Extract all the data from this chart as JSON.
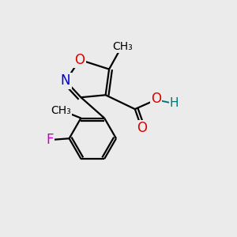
{
  "background_color": "#ebebeb",
  "bond_color": "#000000",
  "bond_lw": 1.6,
  "dbo": 0.012,
  "colors": {
    "N": "#0000cc",
    "O": "#dd0000",
    "F": "#cc00cc",
    "H": "#007777",
    "C": "#000000"
  },
  "fig_width": 3.0,
  "fig_height": 3.0,
  "dpi": 100
}
